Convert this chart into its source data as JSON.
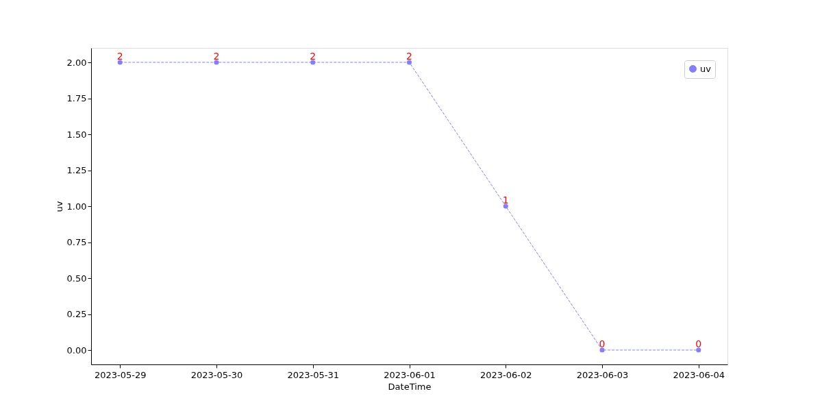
{
  "chart_data": {
    "type": "line",
    "xlabel": "DateTime",
    "ylabel": "uv",
    "categories": [
      "2023-05-29",
      "2023-05-30",
      "2023-05-31",
      "2023-06-01",
      "2023-06-02",
      "2023-06-03",
      "2023-06-04"
    ],
    "series": [
      {
        "name": "uv",
        "color": "#8080ff",
        "values": [
          2,
          2,
          2,
          2,
          1,
          0,
          0
        ]
      }
    ],
    "ylim": [
      -0.1,
      2.1
    ],
    "yticks": [
      {
        "value": 0,
        "label": "0.00"
      },
      {
        "value": 0.25,
        "label": "0.25"
      },
      {
        "value": 0.5,
        "label": "0.50"
      },
      {
        "value": 0.75,
        "label": "0.75"
      },
      {
        "value": 1,
        "label": "1.00"
      },
      {
        "value": 1.25,
        "label": "1.25"
      },
      {
        "value": 1.5,
        "label": "1.50"
      },
      {
        "value": 1.75,
        "label": "1.75"
      },
      {
        "value": 2,
        "label": "2.00"
      }
    ],
    "data_labels": true,
    "marker": "circle",
    "line_style": "dashed",
    "legend": "top right",
    "grid": false
  }
}
